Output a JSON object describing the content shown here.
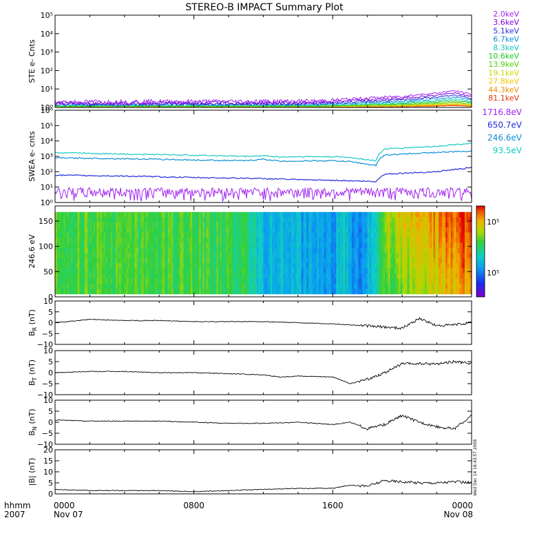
{
  "title": "STEREO-B IMPACT Summary Plot",
  "x_axis": {
    "corner_labels": [
      "hhmm",
      "2007"
    ],
    "ticks": [
      {
        "time": "0000",
        "date": "Nov 07"
      },
      {
        "time": "0800",
        "date": ""
      },
      {
        "time": "1600",
        "date": ""
      },
      {
        "time": "0000",
        "date": "Nov 08"
      }
    ],
    "range_hours": [
      0,
      24
    ]
  },
  "timestamp": "Wed Dec 14 16:43:57 2008",
  "colors": {
    "ste_legend": [
      "#a020f0",
      "#7b00d6",
      "#1f2bd8",
      "#0b8fd6",
      "#13c8c0",
      "#1ec91e",
      "#53d100",
      "#c8d400",
      "#f2c500",
      "#f08a00",
      "#e23000"
    ],
    "swea_legend": [
      "#a020f0",
      "#1f2bd8",
      "#0b8fd6",
      "#13c8c0"
    ]
  },
  "chart_data": [
    {
      "type": "line",
      "panel": "ste",
      "ylabel": "STE e- Cnts",
      "scale": "log",
      "ylim": [
        1,
        100000
      ],
      "yticks": [
        {
          "value": 1,
          "label": "10⁰"
        },
        {
          "value": 10,
          "label": "10¹"
        },
        {
          "value": 100,
          "label": "10²"
        },
        {
          "value": 1000,
          "label": "10³"
        },
        {
          "value": 10000,
          "label": "10⁴"
        },
        {
          "value": 100000,
          "label": "10⁵"
        }
      ],
      "legend": [
        "2.0keV",
        "3.6keV",
        "5.1keV",
        "6.7keV",
        "8.3keV",
        "10.6keV",
        "13.9keV",
        "19.1keV",
        "27.8keV",
        "44.3keV",
        "81.1keV"
      ],
      "series_profile": {
        "x": [
          0,
          15,
          17.5,
          20,
          22,
          23,
          24
        ],
        "y": [
          2,
          2.2,
          3,
          4,
          6,
          8,
          5
        ]
      }
    },
    {
      "type": "line",
      "panel": "swea",
      "ylabel": "SWEA e- cnts",
      "scale": "log",
      "ylim": [
        1,
        1000000
      ],
      "yticks": [
        {
          "value": 1,
          "label": "10⁰"
        },
        {
          "value": 10,
          "label": "10¹"
        },
        {
          "value": 100,
          "label": "10²"
        },
        {
          "value": 1000,
          "label": "10³"
        },
        {
          "value": 10000,
          "label": "10⁴"
        },
        {
          "value": 100000,
          "label": "10⁵"
        },
        {
          "value": 1000000,
          "label": "10⁶"
        }
      ],
      "legend": [
        "1716.8eV",
        "650.7eV",
        "246.6eV",
        "93.5eV"
      ],
      "series": [
        {
          "x": [
            0,
            4,
            8,
            11,
            12,
            13,
            14,
            16,
            17,
            18,
            18.5,
            19,
            20,
            22,
            24
          ],
          "y": [
            4,
            4,
            4,
            4,
            4,
            4,
            4,
            4,
            4,
            4,
            4,
            4,
            4,
            4,
            4
          ]
        },
        {
          "x": [
            0,
            4,
            8,
            11,
            12,
            13,
            14,
            16,
            17,
            18,
            18.5,
            19,
            20,
            22,
            24
          ],
          "y": [
            60,
            52,
            42,
            38,
            35,
            34,
            30,
            28,
            26,
            24,
            22,
            70,
            80,
            100,
            180
          ]
        },
        {
          "x": [
            0,
            4,
            8,
            11,
            12,
            13,
            14,
            16,
            17,
            18,
            18.5,
            19,
            20,
            22,
            24
          ],
          "y": [
            800,
            700,
            580,
            520,
            650,
            480,
            500,
            520,
            460,
            300,
            260,
            1200,
            1400,
            1800,
            2200
          ]
        },
        {
          "x": [
            0,
            4,
            8,
            11,
            12,
            13,
            14,
            16,
            17,
            18,
            18.5,
            19,
            20,
            22,
            24
          ],
          "y": [
            1800,
            1400,
            1200,
            1000,
            1100,
            900,
            950,
            950,
            850,
            600,
            500,
            3000,
            3500,
            4500,
            7000
          ]
        }
      ]
    },
    {
      "type": "heatmap",
      "panel": "pad",
      "ylabel": "246.6 eV",
      "ylim": [
        0,
        180
      ],
      "yticks": [
        {
          "value": 0,
          "label": "0"
        },
        {
          "value": 50,
          "label": "50"
        },
        {
          "value": 100,
          "label": "100"
        },
        {
          "value": 150,
          "label": "150"
        }
      ],
      "colorbar_labels": [
        "10⁵",
        "10⁵"
      ],
      "level_profile": {
        "x": [
          0,
          8,
          11,
          12,
          13,
          14,
          16,
          16.5,
          17.5,
          18.5,
          19,
          21,
          22.5,
          24
        ],
        "v": [
          0.62,
          0.6,
          0.55,
          0.38,
          0.4,
          0.35,
          0.3,
          0.45,
          0.25,
          0.45,
          0.66,
          0.72,
          0.85,
          0.92
        ]
      }
    },
    {
      "type": "line",
      "panel": "br",
      "ylabel": "B_R (nT)",
      "ylim": [
        -10,
        10
      ],
      "yticks": [
        {
          "value": -10,
          "label": "−10"
        },
        {
          "value": -5,
          "label": "−5"
        },
        {
          "value": 0,
          "label": "0"
        },
        {
          "value": 5,
          "label": "5"
        },
        {
          "value": 10,
          "label": "10"
        }
      ],
      "x": [
        0,
        2,
        4,
        6,
        8,
        10,
        12,
        14,
        16,
        17,
        18,
        19,
        20,
        21,
        22,
        23,
        24
      ],
      "y": [
        0,
        1.5,
        1,
        1,
        0.5,
        0.5,
        0.5,
        0,
        -0.5,
        -1,
        -1.5,
        -2,
        -2.5,
        2,
        -1.5,
        -1,
        0
      ]
    },
    {
      "type": "line",
      "panel": "bt",
      "ylabel": "B_T (nT)",
      "ylim": [
        -10,
        10
      ],
      "yticks": [
        {
          "value": -10,
          "label": "−10"
        },
        {
          "value": -5,
          "label": "−5"
        },
        {
          "value": 0,
          "label": "0"
        },
        {
          "value": 5,
          "label": "5"
        },
        {
          "value": 10,
          "label": "10"
        }
      ],
      "x": [
        0,
        2,
        4,
        6,
        8,
        10,
        12,
        13,
        14,
        16,
        17,
        18,
        19,
        20,
        21,
        22,
        23,
        24
      ],
      "y": [
        0,
        0.5,
        0.5,
        0,
        0,
        -0.5,
        -1,
        -2,
        -1.5,
        -2,
        -5,
        -3,
        0,
        4,
        4,
        4,
        5,
        4
      ]
    },
    {
      "type": "line",
      "panel": "bn",
      "ylabel": "B_N (nT)",
      "ylim": [
        -10,
        10
      ],
      "yticks": [
        {
          "value": -10,
          "label": "−10"
        },
        {
          "value": -5,
          "label": "−5"
        },
        {
          "value": 0,
          "label": "0"
        },
        {
          "value": 5,
          "label": "5"
        },
        {
          "value": 10,
          "label": "10"
        }
      ],
      "x": [
        0,
        2,
        4,
        6,
        8,
        10,
        12,
        14,
        16,
        17,
        18,
        19,
        20,
        21,
        22,
        23,
        24
      ],
      "y": [
        1,
        0.5,
        0.5,
        0.5,
        0,
        -0.5,
        -0.5,
        0,
        -1,
        0,
        -3,
        -1,
        3,
        0,
        -2,
        -3,
        3
      ]
    },
    {
      "type": "line",
      "panel": "bmag",
      "ylabel": "|B| (nT)",
      "ylim": [
        0,
        20
      ],
      "yticks": [
        {
          "value": 0,
          "label": "0"
        },
        {
          "value": 5,
          "label": "5"
        },
        {
          "value": 10,
          "label": "10"
        },
        {
          "value": 15,
          "label": "15"
        },
        {
          "value": 20,
          "label": "20"
        }
      ],
      "x": [
        0,
        2,
        4,
        6,
        8,
        10,
        12,
        14,
        16,
        17,
        18,
        19,
        20,
        21,
        22,
        23,
        24
      ],
      "y": [
        2,
        1.5,
        1.5,
        1.5,
        1,
        1.5,
        2,
        2.5,
        2.5,
        4,
        3.5,
        6,
        5.5,
        5,
        5,
        5.5,
        5
      ]
    }
  ]
}
